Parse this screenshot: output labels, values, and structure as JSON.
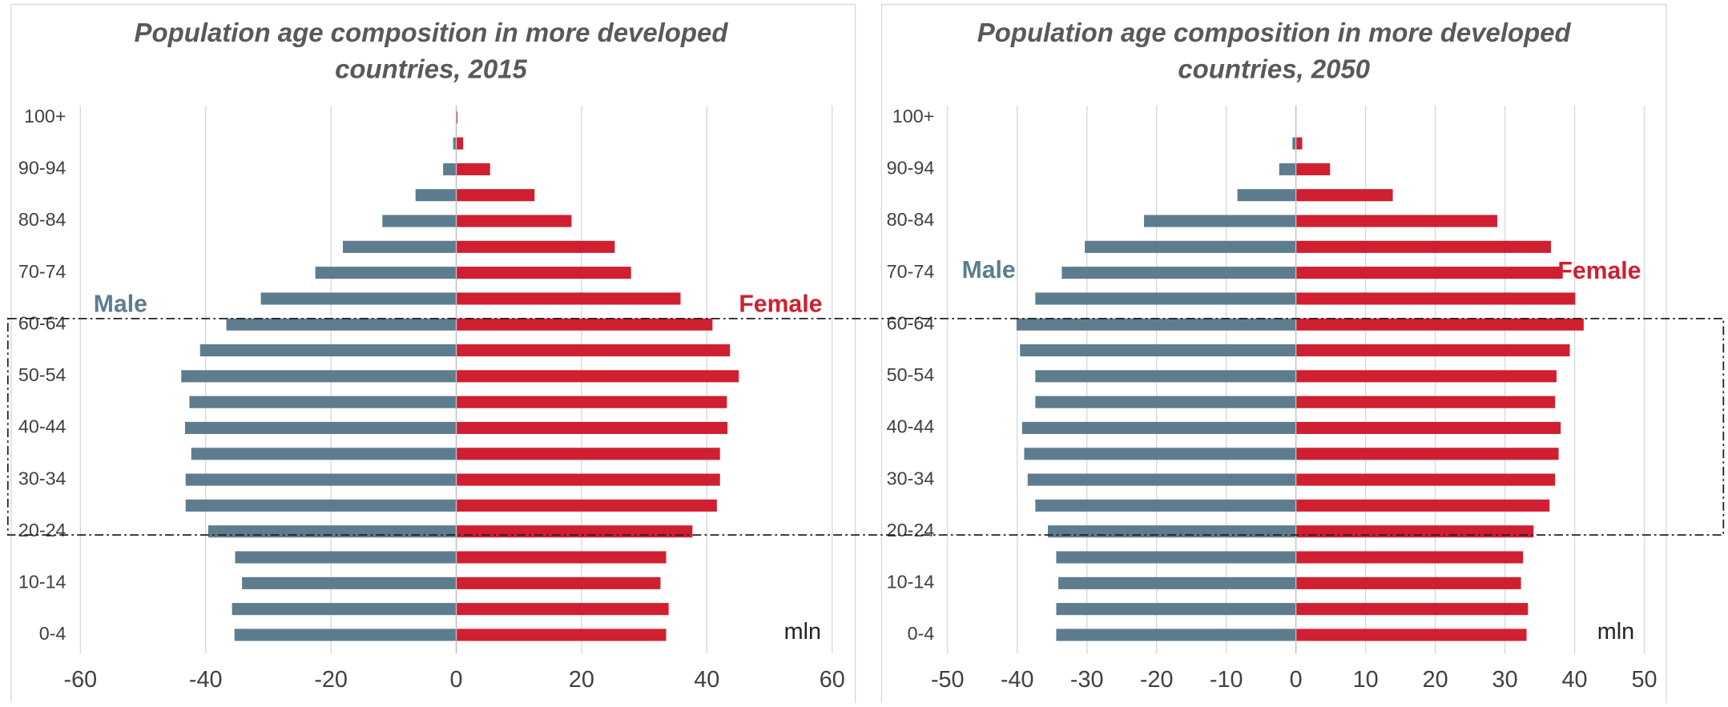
{
  "chart_data": [
    {
      "type": "pyramid",
      "title": "Population age composition in more developed countries, 2015",
      "x_label": "mln",
      "categories": [
        "0-4",
        null,
        "10-14",
        null,
        "20-24",
        null,
        "30-34",
        null,
        "40-44",
        null,
        "50-54",
        null,
        "60-64",
        null,
        "70-74",
        null,
        "80-84",
        null,
        "90-94",
        null,
        "100+"
      ],
      "series": [
        {
          "name": "Male",
          "color": "#5d7d8f",
          "values": [
            -35.4,
            -35.8,
            -34.2,
            -35.3,
            -39.6,
            -43.2,
            -43.2,
            -42.3,
            -43.3,
            -42.6,
            -43.9,
            -40.9,
            -36.7,
            -31.2,
            -22.5,
            -18.1,
            -11.8,
            -6.5,
            -2.1,
            -0.5,
            -0.05
          ]
        },
        {
          "name": "Female",
          "color": "#d01f30",
          "values": [
            33.5,
            33.9,
            32.6,
            33.5,
            37.7,
            41.6,
            42.1,
            42.1,
            43.3,
            43.2,
            45.1,
            43.7,
            40.9,
            35.8,
            27.9,
            25.3,
            18.4,
            12.5,
            5.4,
            1.1,
            0.2
          ]
        }
      ],
      "xlim": [
        -60,
        60
      ],
      "xticks": [
        -60,
        -40,
        -20,
        0,
        20,
        40,
        60
      ],
      "grid": true
    },
    {
      "type": "pyramid",
      "title": "Population age composition in more developed countries, 2050",
      "x_label": "mln",
      "categories": [
        "0-4",
        null,
        "10-14",
        null,
        "20-24",
        null,
        "30-34",
        null,
        "40-44",
        null,
        "50-54",
        null,
        "60-64",
        null,
        "70-74",
        null,
        "80-84",
        null,
        "90-94",
        null,
        "100+"
      ],
      "series": [
        {
          "name": "Male",
          "color": "#5d7d8f",
          "values": [
            -34.4,
            -34.4,
            -34.1,
            -34.4,
            -35.6,
            -37.4,
            -38.5,
            -39.0,
            -39.3,
            -37.4,
            -37.4,
            -39.6,
            -40.1,
            -37.4,
            -33.6,
            -30.3,
            -21.8,
            -8.4,
            -2.4,
            -0.5,
            0
          ]
        },
        {
          "name": "Female",
          "color": "#d01f30",
          "values": [
            33.1,
            33.3,
            32.3,
            32.6,
            34.1,
            36.4,
            37.2,
            37.7,
            38.0,
            37.2,
            37.4,
            39.3,
            41.3,
            40.1,
            37.9,
            36.6,
            28.9,
            13.9,
            4.9,
            0.9,
            0
          ]
        }
      ],
      "xlim": [
        -50,
        50
      ],
      "xticks": [
        -50,
        -40,
        -30,
        -20,
        -10,
        0,
        10,
        20,
        30,
        40,
        50
      ],
      "grid": true
    }
  ]
}
